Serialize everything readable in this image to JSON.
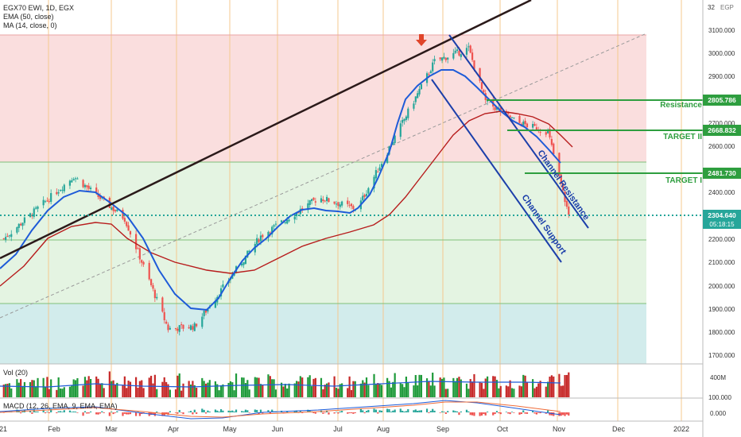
{
  "header": {
    "symbol_line": "EGX70 EWI, 1D, EGX",
    "ema_label": "EMA (50, close)",
    "ma_label": "MA (14, close, 0)"
  },
  "price_axis": {
    "currency": "EGP",
    "top_value": "32",
    "ticks": [
      "3100.000",
      "3000.000",
      "2900.000",
      "2800.000",
      "2700.000",
      "2600.000",
      "2500.000",
      "2400.000",
      "2300.000",
      "2200.000",
      "2100.000",
      "2000.000",
      "1900.000",
      "1800.000",
      "1700.000"
    ]
  },
  "price_tags": {
    "resistance": "2805.786",
    "target2": "2668.832",
    "target1": "2481.730",
    "last": "2304.640",
    "countdown": "05:18:15"
  },
  "annotations": {
    "resistance": "Resistance",
    "target2": "TARGET II",
    "target1": "TARGET I",
    "channel_resistance": "Channel Resistance",
    "channel_support": "Channel Support"
  },
  "volume": {
    "label": "Vol (20)",
    "tick": "400M"
  },
  "macd": {
    "label": "MACD (12, 26, EMA, 9, EMA, EMA)",
    "tick_top": "100.000",
    "tick_zero": "0.000"
  },
  "time_axis": [
    "21",
    "Feb",
    "Mar",
    "Apr",
    "May",
    "Jun",
    "Jul",
    "Aug",
    "Sep",
    "Oct",
    "Nov",
    "Dec",
    "2022"
  ],
  "colors": {
    "up": "#26a69a",
    "down": "#ef5350",
    "ema": "#b71c1c",
    "ma": "#1e5bd8",
    "level": "#2e9e3f",
    "channel": "#1c3faa",
    "trend": "#2b1a1a",
    "zone_red": "#fadede",
    "zone_green": "#e4f4e2",
    "zone_teal": "#d2ecec"
  },
  "chart_data": {
    "type": "candlestick",
    "y_range": [
      1670,
      3195
    ],
    "x_range": [
      "2021-01-01",
      "2022-01-08"
    ],
    "levels": {
      "resistance": 2805.786,
      "target2": 2668.832,
      "target1": 2481.73,
      "last": 2304.64
    },
    "zones": [
      {
        "from": 2530,
        "to": 3080,
        "color": "red"
      },
      {
        "from": 1925,
        "to": 2530,
        "color": "green"
      },
      {
        "from": 1670,
        "to": 1925,
        "color": "teal"
      }
    ],
    "key_closes": [
      {
        "date": "2021-01-01",
        "value": 2190
      },
      {
        "date": "2021-02-09",
        "value": 2470
      },
      {
        "date": "2021-03-08",
        "value": 2290
      },
      {
        "date": "2021-03-31",
        "value": 1820
      },
      {
        "date": "2021-04-14",
        "value": 1830
      },
      {
        "date": "2021-05-19",
        "value": 2215
      },
      {
        "date": "2021-06-19",
        "value": 2380
      },
      {
        "date": "2021-07-09",
        "value": 2330
      },
      {
        "date": "2021-08-19",
        "value": 2960
      },
      {
        "date": "2021-09-06",
        "value": 3015
      },
      {
        "date": "2021-09-15",
        "value": 2790
      },
      {
        "date": "2021-10-02",
        "value": 2700
      },
      {
        "date": "2021-10-18",
        "value": 2660
      },
      {
        "date": "2021-10-29",
        "value": 2304.64
      }
    ]
  }
}
